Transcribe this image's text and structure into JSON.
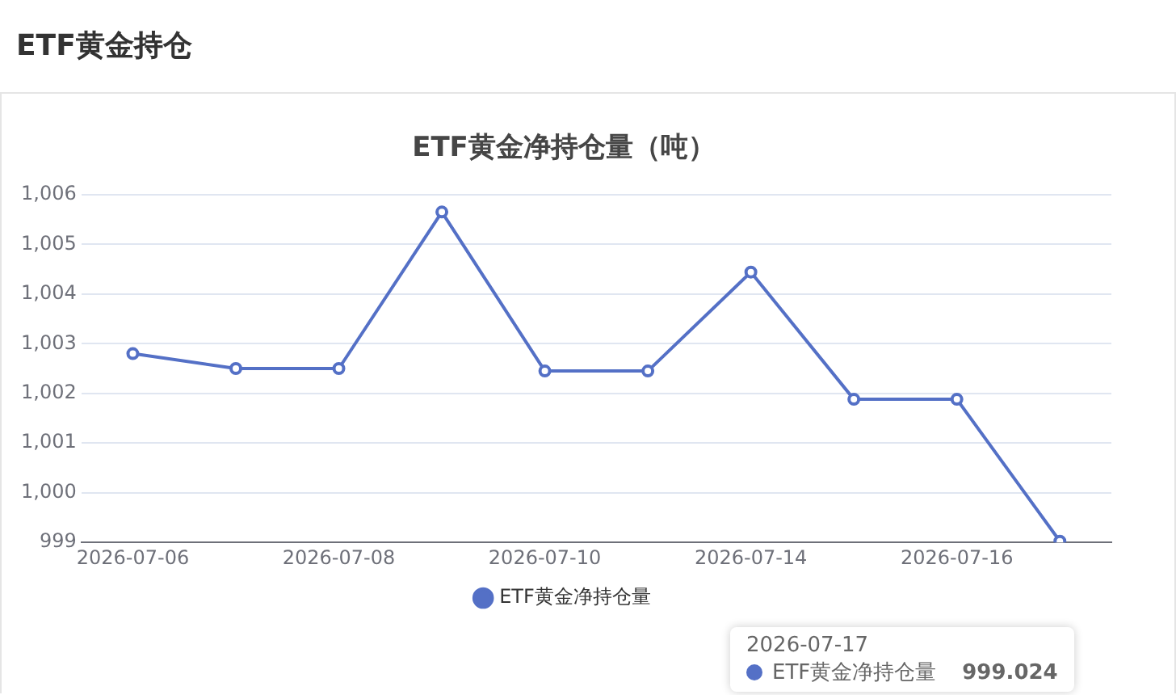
{
  "chart_data": {
    "type": "line",
    "title": "ETF黄金持仓",
    "subtitle": "ETF黄金净持仓量（吨）",
    "categories": [
      "2026-07-06",
      null,
      "2026-07-08",
      null,
      "2026-07-10",
      null,
      "2026-07-14",
      null,
      "2026-07-16",
      null
    ],
    "series": [
      {
        "name": "ETF黄金净持仓量",
        "color": "#5470c6",
        "values": [
          1002.8,
          1002.5,
          1002.5,
          1005.65,
          1002.45,
          1002.45,
          1004.44,
          1001.88,
          1001.88,
          999.024
        ]
      }
    ],
    "ylim": [
      999,
      1006
    ],
    "yticks": [
      999,
      {
        "value": 1000,
        "label": "1,000"
      },
      {
        "value": 1001,
        "label": "1,001"
      },
      {
        "value": 1002,
        "label": "1,002"
      },
      {
        "value": 1003,
        "label": "1,003"
      },
      {
        "value": 1004,
        "label": "1,004"
      },
      {
        "value": 1005,
        "label": "1,005"
      },
      {
        "value": 1006,
        "label": "1,006"
      }
    ],
    "grid": "y",
    "legend": "bottom",
    "marker": "circle",
    "line_style": "solid",
    "annotations": [
      "2026-07-17",
      "999.024"
    ]
  }
}
